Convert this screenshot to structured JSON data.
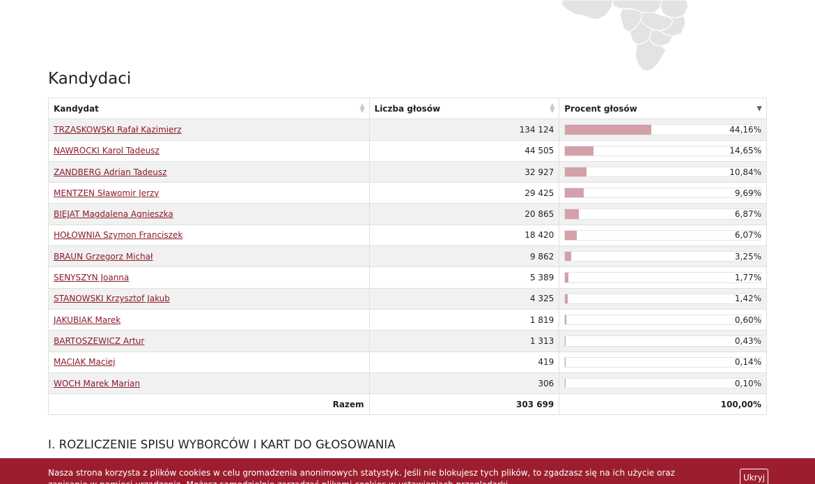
{
  "section_title": "Kandydaci",
  "table": {
    "headers": [
      "Kandydat",
      "Liczba głosów",
      "Procent głosów"
    ],
    "rows": [
      {
        "name": "TRZASKOWSKI Rafał Kazimierz",
        "votes": "134 124",
        "percent": "44,16%",
        "share": 0.4416
      },
      {
        "name": "NAWROCKI Karol Tadeusz",
        "votes": "44 505",
        "percent": "14,65%",
        "share": 0.1465
      },
      {
        "name": "ZANDBERG Adrian Tadeusz",
        "votes": "32 927",
        "percent": "10,84%",
        "share": 0.1084
      },
      {
        "name": "MENTZEN Sławomir Jerzy",
        "votes": "29 425",
        "percent": "9,69%",
        "share": 0.0969
      },
      {
        "name": "BIEJAT Magdalena Agnieszka",
        "votes": "20 865",
        "percent": "6,87%",
        "share": 0.0687
      },
      {
        "name": "HOŁOWNIA Szymon Franciszek",
        "votes": "18 420",
        "percent": "6,07%",
        "share": 0.0607
      },
      {
        "name": "BRAUN Grzegorz Michał",
        "votes": "9 862",
        "percent": "3,25%",
        "share": 0.0325
      },
      {
        "name": "SENYSZYN Joanna",
        "votes": "5 389",
        "percent": "1,77%",
        "share": 0.0177
      },
      {
        "name": "STANOWSKI Krzysztof Jakub",
        "votes": "4 325",
        "percent": "1,42%",
        "share": 0.0142
      },
      {
        "name": "JAKUBIAK Marek",
        "votes": "1 819",
        "percent": "0,60%",
        "share": 0.006
      },
      {
        "name": "BARTOSZEWICZ Artur",
        "votes": "1 313",
        "percent": "0,43%",
        "share": 0.0043
      },
      {
        "name": "MACIAK Maciej",
        "votes": "419",
        "percent": "0,14%",
        "share": 0.0014
      },
      {
        "name": "WOCH Marek Marian",
        "votes": "306",
        "percent": "0,10%",
        "share": 0.001
      }
    ],
    "total": {
      "label": "Razem",
      "votes": "303 699",
      "percent": "100,00%"
    }
  },
  "subsection_title": "I. ROZLICZENIE SPISU WYBORCÓW I KART DO GŁOSOWANIA",
  "cookie": {
    "text": "Nasza strona korzysta z plików cookies w celu gromadzenia anonimowych statystyk. Jeśli nie blokujesz tych plików, to zgadzasz się na ich użycie oraz zapisanie w pamięci urządzenia. Możesz samodzielnie zarządzać plikami cookies w ustawieniach przeglądarki.",
    "button": "Ukryj"
  },
  "colors": {
    "accent": "#9c1e2e",
    "link": "#8b1a2b",
    "bar": "#d4a0a9"
  }
}
